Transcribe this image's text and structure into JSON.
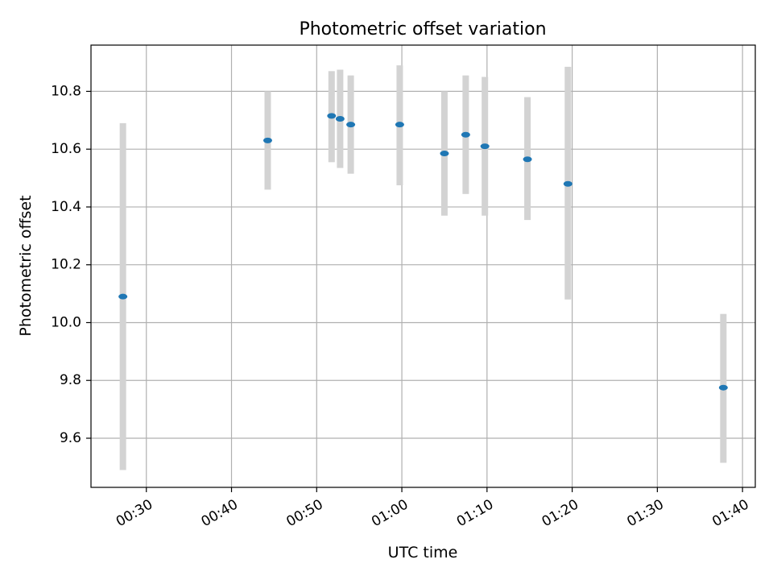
{
  "chart_data": {
    "type": "scatter",
    "title": "Photometric offset variation",
    "xlabel": "UTC time",
    "ylabel": "Photometric offset",
    "x_axis_type": "time",
    "xlim": [
      "00:23:30",
      "01:41:30"
    ],
    "ylim": [
      9.43,
      10.96
    ],
    "x_ticks": [
      "00:30",
      "00:40",
      "00:50",
      "01:00",
      "01:10",
      "01:20",
      "01:30",
      "01:40"
    ],
    "y_ticks": [
      9.6,
      9.8,
      10.0,
      10.2,
      10.4,
      10.6,
      10.8
    ],
    "y_tick_labels": [
      "9.6",
      "9.8",
      "10.0",
      "10.2",
      "10.4",
      "10.6",
      "10.8"
    ],
    "grid": true,
    "colors": {
      "marker": "#1f77b4",
      "errorbar": "#d3d3d3",
      "grid": "#b0b0b0"
    },
    "points": [
      {
        "x": "00:27:15",
        "y": 10.09,
        "y_low": 9.49,
        "y_high": 10.69
      },
      {
        "x": "00:44:15",
        "y": 10.63,
        "y_low": 10.46,
        "y_high": 10.8
      },
      {
        "x": "00:51:45",
        "y": 10.715,
        "y_low": 10.555,
        "y_high": 10.87
      },
      {
        "x": "00:52:45",
        "y": 10.705,
        "y_low": 10.535,
        "y_high": 10.875
      },
      {
        "x": "00:54:00",
        "y": 10.685,
        "y_low": 10.515,
        "y_high": 10.855
      },
      {
        "x": "00:59:45",
        "y": 10.685,
        "y_low": 10.475,
        "y_high": 10.89
      },
      {
        "x": "01:05:00",
        "y": 10.585,
        "y_low": 10.37,
        "y_high": 10.8
      },
      {
        "x": "01:07:30",
        "y": 10.65,
        "y_low": 10.445,
        "y_high": 10.855
      },
      {
        "x": "01:09:45",
        "y": 10.61,
        "y_low": 10.37,
        "y_high": 10.85
      },
      {
        "x": "01:14:45",
        "y": 10.565,
        "y_low": 10.355,
        "y_high": 10.78
      },
      {
        "x": "01:19:30",
        "y": 10.48,
        "y_low": 10.08,
        "y_high": 10.885
      },
      {
        "x": "01:37:45",
        "y": 9.775,
        "y_low": 9.515,
        "y_high": 10.03
      }
    ]
  }
}
